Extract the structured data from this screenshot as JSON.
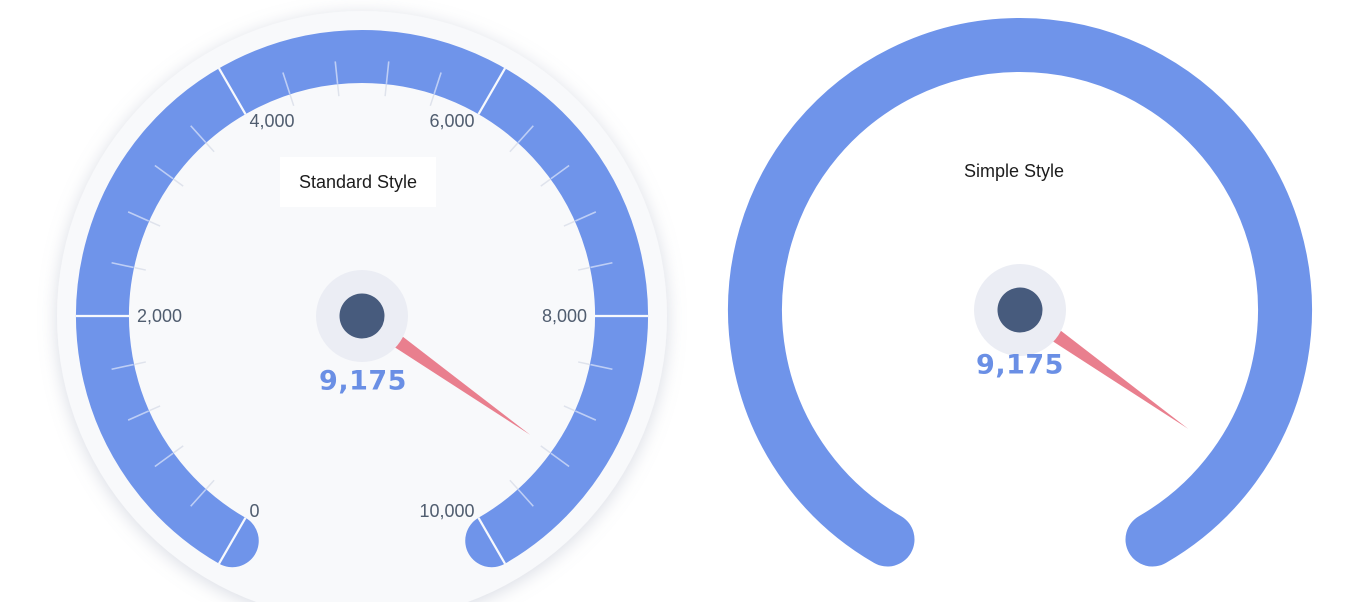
{
  "page": {
    "background_color": "#FFFFFF"
  },
  "colors": {
    "band": "#6F94EA",
    "needle": "#E97F8E",
    "hub": "#475B7D",
    "hub_halo": "#EBEDF4",
    "value_text": "#6A8FE5",
    "axis_label_text": "#505D6F",
    "title_text": "#1C1C1C",
    "title_background": "#FFFFFF",
    "gauge_background_circle": "#F8F9FB",
    "major_tick_color": "#FFFFFF",
    "minor_tick_in_band_color": "#FFFFFF",
    "minor_tick_outside_color": "#DFE3EC"
  },
  "chart_data": [
    {
      "type": "gauge",
      "id": "standard",
      "title": "Standard Style",
      "value": 9175,
      "value_label": "9,175",
      "min": 0,
      "max": 10000,
      "start_angle": 240,
      "end_angle": -60,
      "major_tick_interval": 2000,
      "minor_tick_interval": 400,
      "axis_labels": [
        "0",
        "2,000",
        "4,000",
        "6,000",
        "8,000",
        "10,000"
      ],
      "show_ticks": true,
      "show_axis_labels": true,
      "show_background_circle": true,
      "title_has_background": true,
      "rounded_band_ends": true
    },
    {
      "type": "gauge",
      "id": "simple",
      "title": "Simple Style",
      "value": 9175,
      "value_label": "9,175",
      "min": 0,
      "max": 10000,
      "start_angle": 240,
      "end_angle": -60,
      "axis_labels": [],
      "show_ticks": false,
      "show_axis_labels": false,
      "show_background_circle": false,
      "title_has_background": false,
      "rounded_band_ends": true
    }
  ]
}
